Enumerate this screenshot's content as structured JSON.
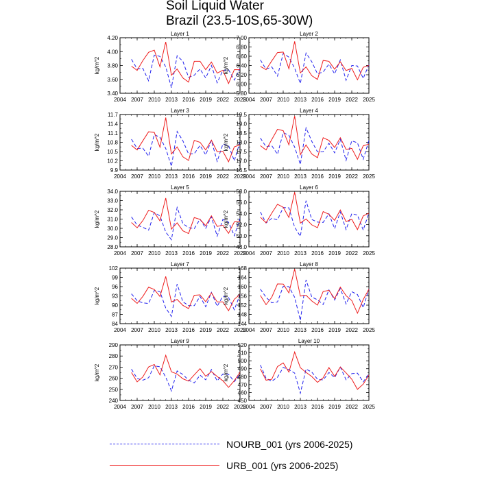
{
  "page": {
    "title": "Soil Liquid Water",
    "subtitle": "Brazil (23.5-10S,65-30W)"
  },
  "colors": {
    "nourb": "#2020ee",
    "urb": "#ee1c1c"
  },
  "legend": {
    "nourb": "NOURB_001 (yrs 2006-2025)",
    "urb": "URB_001 (yrs 2006-2025)"
  },
  "chart_data": [
    {
      "type": "line",
      "title": "Layer 1",
      "ylabel": "kg/m^2",
      "xlim": [
        2004,
        2025
      ],
      "x": [
        2006,
        2007,
        2008,
        2009,
        2010,
        2011,
        2012,
        2013,
        2014,
        2015,
        2016,
        2017,
        2018,
        2019,
        2020,
        2021,
        2022,
        2023,
        2024,
        2025
      ],
      "yticks": [
        "3.40",
        "3.60",
        "3.80",
        "4.00",
        "4.20"
      ],
      "ylim": [
        3.4,
        4.2
      ],
      "series": [
        {
          "name": "NOURB_001 (yrs 2006-2025)",
          "values": [
            3.89,
            3.75,
            3.76,
            3.58,
            3.95,
            3.93,
            3.78,
            3.48,
            3.94,
            3.86,
            3.63,
            3.66,
            3.75,
            3.62,
            3.8,
            3.55,
            3.73,
            3.74,
            3.59,
            3.76
          ]
        },
        {
          "name": "URB_001 (yrs 2006-2025)",
          "values": [
            3.79,
            3.73,
            3.87,
            3.99,
            4.02,
            3.78,
            4.14,
            3.66,
            3.75,
            3.62,
            3.56,
            3.86,
            3.86,
            3.74,
            3.85,
            3.69,
            3.73,
            3.54,
            3.74,
            3.74
          ]
        }
      ]
    },
    {
      "type": "line",
      "title": "Layer 2",
      "ylabel": "kg/m^2",
      "xlim": [
        2004,
        2025
      ],
      "x": [
        2006,
        2007,
        2008,
        2009,
        2010,
        2011,
        2012,
        2013,
        2014,
        2015,
        2016,
        2017,
        2018,
        2019,
        2020,
        2021,
        2022,
        2023,
        2024,
        2025
      ],
      "yticks": [
        "5.80",
        "6.00",
        "6.20",
        "6.40",
        "6.60",
        "6.80",
        "7.00"
      ],
      "ylim": [
        5.8,
        7.0
      ],
      "series": [
        {
          "name": "NOURB_001 (yrs 2006-2025)",
          "values": [
            6.52,
            6.32,
            6.37,
            6.17,
            6.66,
            6.58,
            6.34,
            6.01,
            6.67,
            6.48,
            6.22,
            6.26,
            6.43,
            6.22,
            6.52,
            6.08,
            6.4,
            6.39,
            6.12,
            6.42
          ]
        },
        {
          "name": "URB_001 (yrs 2006-2025)",
          "values": [
            6.38,
            6.31,
            6.5,
            6.68,
            6.69,
            6.33,
            6.92,
            6.24,
            6.37,
            6.18,
            6.1,
            6.51,
            6.49,
            6.32,
            6.48,
            6.29,
            6.34,
            6.09,
            6.36,
            6.4
          ]
        }
      ]
    },
    {
      "type": "line",
      "title": "Layer 3",
      "ylabel": "kg/m^2",
      "xlim": [
        2004,
        2025
      ],
      "x": [
        2006,
        2007,
        2008,
        2009,
        2010,
        2011,
        2012,
        2013,
        2014,
        2015,
        2016,
        2017,
        2018,
        2019,
        2020,
        2021,
        2022,
        2023,
        2024,
        2025
      ],
      "yticks": [
        "9.9",
        "10.2",
        "10.5",
        "10.8",
        "11.1",
        "11.4",
        "11.7"
      ],
      "ylim": [
        9.9,
        11.7
      ],
      "series": [
        {
          "name": "NOURB_001 (yrs 2006-2025)",
          "values": [
            10.9,
            10.6,
            10.61,
            10.35,
            11.05,
            10.96,
            10.6,
            10.02,
            11.15,
            10.85,
            10.42,
            10.43,
            10.7,
            10.39,
            10.86,
            10.18,
            10.74,
            10.7,
            10.2,
            10.82
          ]
        },
        {
          "name": "URB_001 (yrs 2006-2025)",
          "values": [
            10.7,
            10.55,
            10.85,
            11.14,
            11.12,
            10.64,
            11.6,
            10.42,
            10.65,
            10.33,
            10.21,
            10.86,
            10.8,
            10.55,
            10.87,
            10.49,
            10.51,
            10.17,
            10.65,
            10.72
          ]
        }
      ]
    },
    {
      "type": "line",
      "title": "Layer 4",
      "ylabel": "kg/m^2",
      "xlim": [
        2004,
        2025
      ],
      "x": [
        2006,
        2007,
        2008,
        2009,
        2010,
        2011,
        2012,
        2013,
        2014,
        2015,
        2016,
        2017,
        2018,
        2019,
        2020,
        2021,
        2022,
        2023,
        2024,
        2025
      ],
      "yticks": [
        "16.5",
        "17.0",
        "17.5",
        "18.0",
        "18.5",
        "19.0",
        "19.5"
      ],
      "ylim": [
        16.5,
        19.5
      ],
      "series": [
        {
          "name": "NOURB_001 (yrs 2006-2025)",
          "values": [
            18.23,
            17.76,
            17.82,
            17.35,
            18.52,
            18.38,
            17.74,
            16.8,
            18.78,
            18.05,
            17.48,
            17.49,
            17.95,
            17.43,
            18.16,
            17.02,
            18.08,
            17.97,
            17.08,
            18.1
          ]
        },
        {
          "name": "URB_001 (yrs 2006-2025)",
          "values": [
            17.82,
            17.58,
            18.15,
            18.7,
            18.63,
            17.86,
            19.42,
            17.33,
            17.86,
            17.37,
            17.17,
            18.25,
            18.1,
            17.72,
            18.25,
            17.62,
            17.67,
            17.08,
            17.81,
            17.9
          ]
        }
      ]
    },
    {
      "type": "line",
      "title": "Layer 5",
      "ylabel": "kg/m^2",
      "xlim": [
        2004,
        2025
      ],
      "x": [
        2006,
        2007,
        2008,
        2009,
        2010,
        2011,
        2012,
        2013,
        2014,
        2015,
        2016,
        2017,
        2018,
        2019,
        2020,
        2021,
        2022,
        2023,
        2024,
        2025
      ],
      "yticks": [
        "28.0",
        "29.0",
        "30.0",
        "31.0",
        "32.0",
        "33.0",
        "34.0"
      ],
      "ylim": [
        28.0,
        34.0
      ],
      "series": [
        {
          "name": "NOURB_001 (yrs 2006-2025)",
          "values": [
            31.24,
            30.35,
            30.12,
            29.81,
            31.71,
            31.34,
            29.6,
            28.77,
            32.27,
            30.51,
            30.08,
            29.96,
            30.99,
            30.0,
            31.25,
            29.15,
            30.96,
            30.67,
            29.2,
            31.07
          ]
        },
        {
          "name": "URB_001 (yrs 2006-2025)",
          "values": [
            30.63,
            30.06,
            30.84,
            31.95,
            31.72,
            30.8,
            33.27,
            29.92,
            30.6,
            29.73,
            29.44,
            31.16,
            30.97,
            30.29,
            31.35,
            30.21,
            30.34,
            29.46,
            30.7,
            30.78
          ]
        }
      ]
    },
    {
      "type": "line",
      "title": "Layer 6",
      "ylabel": "kg/m^2",
      "xlim": [
        2004,
        2025
      ],
      "x": [
        2006,
        2007,
        2008,
        2009,
        2010,
        2011,
        2012,
        2013,
        2014,
        2015,
        2016,
        2017,
        2018,
        2019,
        2020,
        2021,
        2022,
        2023,
        2024,
        2025
      ],
      "yticks": [
        "48.0",
        "50.0",
        "52.0",
        "54.0",
        "56.0",
        "58.0"
      ],
      "ylim": [
        48.0,
        58.0
      ],
      "series": [
        {
          "name": "NOURB_001 (yrs 2006-2025)",
          "values": [
            54.28,
            52.3,
            53.14,
            52.88,
            55.08,
            55.03,
            51.54,
            49.89,
            56.31,
            52.93,
            52.46,
            52.41,
            53.96,
            51.29,
            54.28,
            51.11,
            53.97,
            53.71,
            51.01,
            54.12
          ]
        },
        {
          "name": "URB_001 (yrs 2006-2025)",
          "values": [
            53.33,
            52.35,
            54.06,
            55.67,
            55.14,
            53.3,
            57.83,
            52.27,
            53.03,
            51.96,
            51.44,
            54.34,
            53.87,
            52.77,
            54.64,
            52.56,
            52.95,
            51.11,
            53.57,
            54.07
          ]
        }
      ]
    },
    {
      "type": "line",
      "title": "Layer 7",
      "ylabel": "kg/m^2",
      "xlim": [
        2004,
        2025
      ],
      "x": [
        2006,
        2007,
        2008,
        2009,
        2010,
        2011,
        2012,
        2013,
        2014,
        2015,
        2016,
        2017,
        2018,
        2019,
        2020,
        2021,
        2022,
        2023,
        2024,
        2025
      ],
      "yticks": [
        "84",
        "87",
        "90",
        "93",
        "96",
        "99",
        "102"
      ],
      "ylim": [
        84,
        102
      ],
      "series": [
        {
          "name": "NOURB_001 (yrs 2006-2025)",
          "values": [
            93.67,
            91.44,
            90.74,
            90.53,
            94.76,
            94.36,
            89.06,
            86.36,
            96.85,
            91.09,
            89.86,
            89.83,
            92.85,
            89.49,
            94.16,
            89.63,
            92.92,
            92.48,
            88.49,
            93.44
          ]
        },
        {
          "name": "URB_001 (yrs 2006-2025)",
          "values": [
            92.19,
            90.57,
            92.82,
            95.82,
            95.07,
            92.81,
            99.29,
            91.03,
            91.87,
            89.94,
            88.89,
            93.19,
            93.33,
            91.14,
            93.99,
            91.05,
            91.04,
            88.21,
            91.92,
            93.47
          ]
        }
      ]
    },
    {
      "type": "line",
      "title": "Layer 8",
      "ylabel": "kg/m^2",
      "xlim": [
        2004,
        2025
      ],
      "x": [
        2006,
        2007,
        2008,
        2009,
        2010,
        2011,
        2012,
        2013,
        2014,
        2015,
        2016,
        2017,
        2018,
        2019,
        2020,
        2021,
        2022,
        2023,
        2024,
        2025
      ],
      "yticks": [
        "144",
        "148",
        "152",
        "156",
        "160",
        "164",
        "168"
      ],
      "ylim": [
        144,
        168
      ],
      "series": [
        {
          "name": "NOURB_001 (yrs 2006-2025)",
          "values": [
            158.9,
            155.4,
            153.0,
            153.4,
            160.1,
            160.0,
            155.4,
            145.4,
            162.9,
            155.5,
            154.3,
            152.3,
            158.6,
            154.2,
            159.2,
            152.5,
            157.8,
            156.6,
            150.9,
            159.0
          ]
        },
        {
          "name": "URB_001 (yrs 2006-2025)",
          "values": [
            156.2,
            152.2,
            155.4,
            161.2,
            161.1,
            157.3,
            167.6,
            155.9,
            156.3,
            153.8,
            152.0,
            157.9,
            158.4,
            154.8,
            159.8,
            156.1,
            154.0,
            148.5,
            154.4,
            158.9
          ]
        }
      ]
    },
    {
      "type": "line",
      "title": "Layer 9",
      "ylabel": "kg/m^2",
      "xlim": [
        2004,
        2025
      ],
      "x": [
        2006,
        2007,
        2008,
        2009,
        2010,
        2011,
        2012,
        2013,
        2014,
        2015,
        2016,
        2017,
        2018,
        2019,
        2020,
        2021,
        2022,
        2023,
        2024,
        2025
      ],
      "yticks": [
        "240",
        "250",
        "260",
        "270",
        "280",
        "290"
      ],
      "ylim": [
        240,
        290
      ],
      "series": [
        {
          "name": "NOURB_001 (yrs 2006-2025)",
          "values": [
            268.2,
            259.8,
            258.2,
            260.5,
            271.2,
            270.3,
            261.0,
            248.5,
            266.6,
            263.4,
            258.3,
            255.8,
            262.8,
            258.6,
            267.8,
            257.6,
            263.8,
            263.5,
            257.0,
            263.7
          ]
        },
        {
          "name": "URB_001 (yrs 2006-2025)",
          "values": [
            265.1,
            256.7,
            261.2,
            270.2,
            272.4,
            263.0,
            280.7,
            265.8,
            263.8,
            259.5,
            257.4,
            263.0,
            268.6,
            261.8,
            266.0,
            261.6,
            257.7,
            251.8,
            257.8,
            265.4
          ]
        }
      ]
    },
    {
      "type": "line",
      "title": "Layer 10",
      "ylabel": "kg/m^2",
      "xlim": [
        2004,
        2025
      ],
      "x": [
        2006,
        2007,
        2008,
        2009,
        2010,
        2011,
        2012,
        2013,
        2014,
        2015,
        2016,
        2017,
        2018,
        2019,
        2020,
        2021,
        2022,
        2023,
        2024,
        2025
      ],
      "yticks": [
        "450",
        "460",
        "470",
        "480",
        "490",
        "500",
        "510",
        "520"
      ],
      "ylim": [
        450,
        520
      ],
      "series": [
        {
          "name": "NOURB_001 (yrs 2006-2025)",
          "values": [
            494.7,
            478.0,
            474.2,
            479.3,
            491.6,
            488.9,
            484.5,
            459.1,
            489.5,
            485.8,
            476.8,
            475.8,
            485.3,
            478.7,
            492.1,
            476.0,
            483.8,
            484.4,
            473.4,
            483.4
          ]
        },
        {
          "name": "URB_001 (yrs 2006-2025)",
          "values": [
            489.8,
            475.6,
            476.7,
            492.7,
            497.4,
            485.8,
            511.0,
            491.3,
            485.4,
            480.2,
            472.8,
            478.6,
            491.5,
            480.3,
            492.2,
            484.7,
            476.8,
            464.0,
            470.6,
            481.9
          ]
        }
      ]
    }
  ],
  "xticks": [
    "2004",
    "2007",
    "2010",
    "2013",
    "2016",
    "2019",
    "2022",
    "2025"
  ]
}
